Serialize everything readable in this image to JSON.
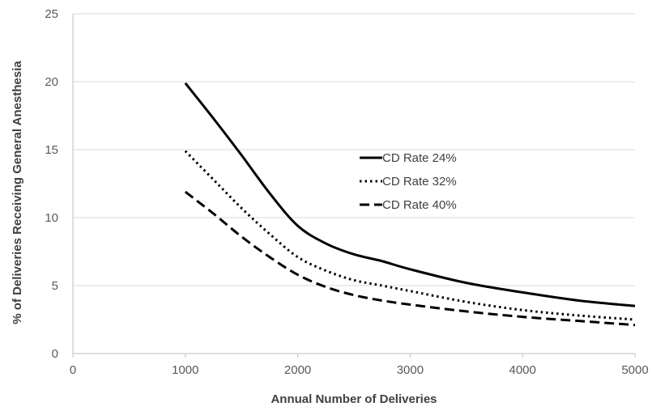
{
  "chart_data": {
    "type": "line",
    "title": "",
    "xlabel": "Annual Number of Deliveries",
    "ylabel": "% of Deliveries Receiving General Anesthesia",
    "xlim": [
      0,
      5000
    ],
    "ylim": [
      0,
      25
    ],
    "x_ticks": [
      "0",
      "1000",
      "2000",
      "3000",
      "4000",
      "5000"
    ],
    "y_ticks": [
      "0",
      "5",
      "10",
      "15",
      "20",
      "25"
    ],
    "grid": "horizontal",
    "legend_position": "center-right",
    "x": [
      1000,
      1250,
      1500,
      1750,
      2000,
      2250,
      2500,
      2750,
      3000,
      3500,
      4000,
      4500,
      5000
    ],
    "series": [
      {
        "name": "CD Rate 24%",
        "style": "solid",
        "color": "#000000",
        "values": [
          19.9,
          17.3,
          14.6,
          11.8,
          9.4,
          8.1,
          7.3,
          6.8,
          6.2,
          5.2,
          4.5,
          3.9,
          3.5
        ]
      },
      {
        "name": "CD Rate 32%",
        "style": "dotted",
        "color": "#000000",
        "values": [
          14.9,
          12.8,
          10.7,
          8.8,
          7.1,
          6.1,
          5.4,
          5.0,
          4.6,
          3.8,
          3.2,
          2.8,
          2.5
        ]
      },
      {
        "name": "CD Rate 40%",
        "style": "dashed",
        "color": "#000000",
        "values": [
          11.9,
          10.3,
          8.6,
          7.1,
          5.8,
          4.9,
          4.3,
          3.9,
          3.6,
          3.1,
          2.7,
          2.4,
          2.1
        ]
      }
    ]
  }
}
